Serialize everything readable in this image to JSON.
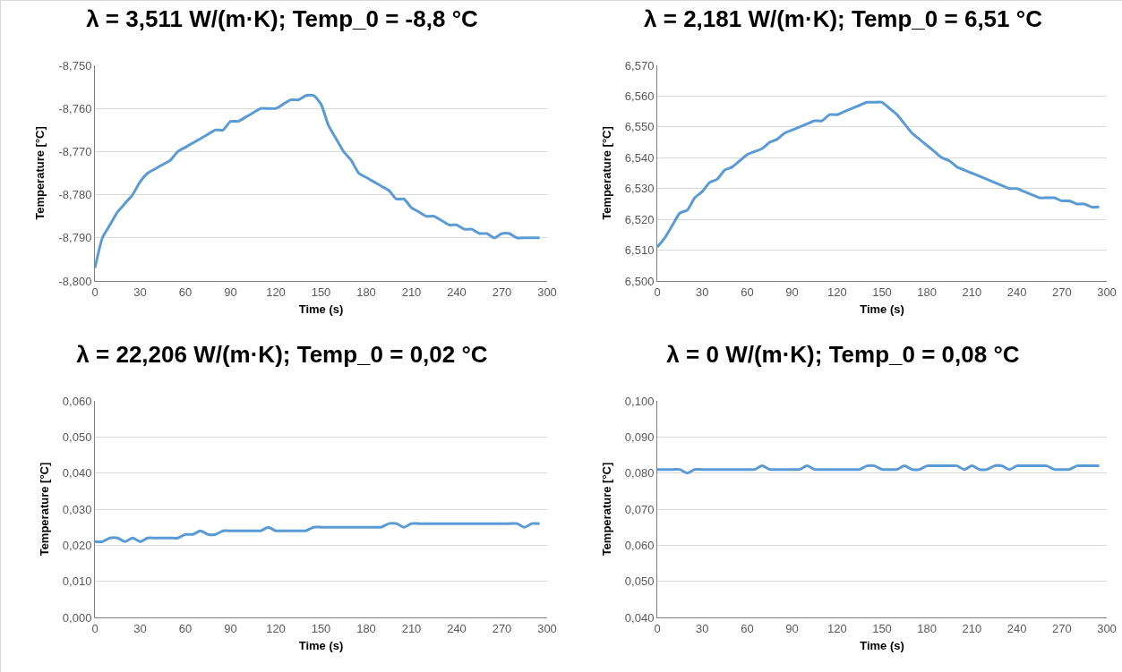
{
  "chart_data": [
    {
      "type": "line",
      "title": "λ = 3,511 W/(m·K); Temp_0 = -8,8 °C",
      "xlabel": "Time (s)",
      "ylabel": "Temperature [°C]",
      "color": "#5b9bd5",
      "grid": "y",
      "x": [
        0,
        5,
        10,
        15,
        20,
        25,
        30,
        35,
        40,
        45,
        50,
        55,
        60,
        65,
        70,
        75,
        80,
        85,
        90,
        95,
        100,
        105,
        110,
        115,
        120,
        125,
        130,
        135,
        140,
        145,
        150,
        155,
        160,
        165,
        170,
        175,
        180,
        185,
        190,
        195,
        200,
        205,
        210,
        215,
        220,
        225,
        230,
        235,
        240,
        245,
        250,
        255,
        260,
        265,
        270,
        275,
        280,
        285,
        290,
        295
      ],
      "values": [
        -8.797,
        -8.79,
        -8.787,
        -8.784,
        -8.782,
        -8.78,
        -8.777,
        -8.775,
        -8.774,
        -8.773,
        -8.772,
        -8.77,
        -8.769,
        -8.768,
        -8.767,
        -8.766,
        -8.765,
        -8.765,
        -8.763,
        -8.763,
        -8.762,
        -8.761,
        -8.76,
        -8.76,
        -8.76,
        -8.759,
        -8.758,
        -8.758,
        -8.757,
        -8.757,
        -8.759,
        -8.764,
        -8.767,
        -8.77,
        -8.772,
        -8.775,
        -8.776,
        -8.777,
        -8.778,
        -8.779,
        -8.781,
        -8.781,
        -8.783,
        -8.784,
        -8.785,
        -8.785,
        -8.786,
        -8.787,
        -8.787,
        -8.788,
        -8.788,
        -8.789,
        -8.789,
        -8.79,
        -8.789,
        -8.789,
        -8.79,
        -8.79,
        -8.79,
        -8.79
      ],
      "xlim": [
        0,
        300
      ],
      "xticks": [
        0,
        30,
        60,
        90,
        120,
        150,
        180,
        210,
        240,
        270,
        300
      ],
      "ylim": [
        -8.8,
        -8.75
      ],
      "yticks": [
        {
          "value": -8.8,
          "label": "-8,800"
        },
        {
          "value": -8.79,
          "label": "-8,790"
        },
        {
          "value": -8.78,
          "label": "-8,780"
        },
        {
          "value": -8.77,
          "label": "-8,770"
        },
        {
          "value": -8.76,
          "label": "-8,760"
        },
        {
          "value": -8.75,
          "label": "-8,750"
        }
      ]
    },
    {
      "type": "line",
      "title": "λ = 2,181 W/(m·K); Temp_0 = 6,51 °C",
      "xlabel": "Time (s)",
      "ylabel": "Temperature [°C]",
      "color": "#5b9bd5",
      "grid": "y",
      "x": [
        0,
        5,
        10,
        15,
        20,
        25,
        30,
        35,
        40,
        45,
        50,
        55,
        60,
        65,
        70,
        75,
        80,
        85,
        90,
        95,
        100,
        105,
        110,
        115,
        120,
        125,
        130,
        135,
        140,
        145,
        150,
        155,
        160,
        165,
        170,
        175,
        180,
        185,
        190,
        195,
        200,
        205,
        210,
        215,
        220,
        225,
        230,
        235,
        240,
        245,
        250,
        255,
        260,
        265,
        270,
        275,
        280,
        285,
        290,
        295
      ],
      "values": [
        6.511,
        6.514,
        6.518,
        6.522,
        6.523,
        6.527,
        6.529,
        6.532,
        6.533,
        6.536,
        6.537,
        6.539,
        6.541,
        6.542,
        6.543,
        6.545,
        6.546,
        6.548,
        6.549,
        6.55,
        6.551,
        6.552,
        6.552,
        6.554,
        6.554,
        6.555,
        6.556,
        6.557,
        6.558,
        6.558,
        6.558,
        6.556,
        6.554,
        6.551,
        6.548,
        6.546,
        6.544,
        6.542,
        6.54,
        6.539,
        6.537,
        6.536,
        6.535,
        6.534,
        6.533,
        6.532,
        6.531,
        6.53,
        6.53,
        6.529,
        6.528,
        6.527,
        6.527,
        6.527,
        6.526,
        6.526,
        6.525,
        6.525,
        6.524,
        6.524
      ],
      "xlim": [
        0,
        300
      ],
      "xticks": [
        0,
        30,
        60,
        90,
        120,
        150,
        180,
        210,
        240,
        270,
        300
      ],
      "ylim": [
        6.5,
        6.57
      ],
      "yticks": [
        {
          "value": 6.5,
          "label": "6,500"
        },
        {
          "value": 6.51,
          "label": "6,510"
        },
        {
          "value": 6.52,
          "label": "6,520"
        },
        {
          "value": 6.53,
          "label": "6,530"
        },
        {
          "value": 6.54,
          "label": "6,540"
        },
        {
          "value": 6.55,
          "label": "6,550"
        },
        {
          "value": 6.56,
          "label": "6,560"
        },
        {
          "value": 6.57,
          "label": "6,570"
        }
      ]
    },
    {
      "type": "line",
      "title": "λ = 22,206 W/(m·K); Temp_0 = 0,02 °C",
      "xlabel": "Time (s)",
      "ylabel": "Temperature [°C]",
      "color": "#5b9bd5",
      "grid": "y",
      "x": [
        0,
        5,
        10,
        15,
        20,
        25,
        30,
        35,
        40,
        45,
        50,
        55,
        60,
        65,
        70,
        75,
        80,
        85,
        90,
        95,
        100,
        105,
        110,
        115,
        120,
        125,
        130,
        135,
        140,
        145,
        150,
        155,
        160,
        165,
        170,
        175,
        180,
        185,
        190,
        195,
        200,
        205,
        210,
        215,
        220,
        225,
        230,
        235,
        240,
        245,
        250,
        255,
        260,
        265,
        270,
        275,
        280,
        285,
        290,
        295
      ],
      "values": [
        0.021,
        0.021,
        0.022,
        0.022,
        0.021,
        0.022,
        0.021,
        0.022,
        0.022,
        0.022,
        0.022,
        0.022,
        0.023,
        0.023,
        0.024,
        0.023,
        0.023,
        0.024,
        0.024,
        0.024,
        0.024,
        0.024,
        0.024,
        0.025,
        0.024,
        0.024,
        0.024,
        0.024,
        0.024,
        0.025,
        0.025,
        0.025,
        0.025,
        0.025,
        0.025,
        0.025,
        0.025,
        0.025,
        0.025,
        0.026,
        0.026,
        0.025,
        0.026,
        0.026,
        0.026,
        0.026,
        0.026,
        0.026,
        0.026,
        0.026,
        0.026,
        0.026,
        0.026,
        0.026,
        0.026,
        0.026,
        0.026,
        0.025,
        0.026,
        0.026
      ],
      "xlim": [
        0,
        300
      ],
      "xticks": [
        0,
        30,
        60,
        90,
        120,
        150,
        180,
        210,
        240,
        270,
        300
      ],
      "ylim": [
        0,
        0.06
      ],
      "yticks": [
        {
          "value": 0,
          "label": "0,000"
        },
        {
          "value": 0.01,
          "label": "0,010"
        },
        {
          "value": 0.02,
          "label": "0,020"
        },
        {
          "value": 0.03,
          "label": "0,030"
        },
        {
          "value": 0.04,
          "label": "0,040"
        },
        {
          "value": 0.05,
          "label": "0,050"
        },
        {
          "value": 0.06,
          "label": "0,060"
        }
      ]
    },
    {
      "type": "line",
      "title": "λ = 0 W/(m·K); Temp_0 = 0,08 °C",
      "xlabel": "Time (s)",
      "ylabel": "Temperature [°C]",
      "color": "#5b9bd5",
      "grid": "y",
      "x": [
        0,
        5,
        10,
        15,
        20,
        25,
        30,
        35,
        40,
        45,
        50,
        55,
        60,
        65,
        70,
        75,
        80,
        85,
        90,
        95,
        100,
        105,
        110,
        115,
        120,
        125,
        130,
        135,
        140,
        145,
        150,
        155,
        160,
        165,
        170,
        175,
        180,
        185,
        190,
        195,
        200,
        205,
        210,
        215,
        220,
        225,
        230,
        235,
        240,
        245,
        250,
        255,
        260,
        265,
        270,
        275,
        280,
        285,
        290,
        295
      ],
      "values": [
        0.081,
        0.081,
        0.081,
        0.081,
        0.08,
        0.081,
        0.081,
        0.081,
        0.081,
        0.081,
        0.081,
        0.081,
        0.081,
        0.081,
        0.082,
        0.081,
        0.081,
        0.081,
        0.081,
        0.081,
        0.082,
        0.081,
        0.081,
        0.081,
        0.081,
        0.081,
        0.081,
        0.081,
        0.082,
        0.082,
        0.081,
        0.081,
        0.081,
        0.082,
        0.081,
        0.081,
        0.082,
        0.082,
        0.082,
        0.082,
        0.082,
        0.081,
        0.082,
        0.081,
        0.081,
        0.082,
        0.082,
        0.081,
        0.082,
        0.082,
        0.082,
        0.082,
        0.082,
        0.081,
        0.081,
        0.081,
        0.082,
        0.082,
        0.082,
        0.082
      ],
      "xlim": [
        0,
        300
      ],
      "xticks": [
        0,
        30,
        60,
        90,
        120,
        150,
        180,
        210,
        240,
        270,
        300
      ],
      "ylim": [
        0.04,
        0.1
      ],
      "yticks": [
        {
          "value": 0.04,
          "label": "0,040"
        },
        {
          "value": 0.05,
          "label": "0,050"
        },
        {
          "value": 0.06,
          "label": "0,060"
        },
        {
          "value": 0.07,
          "label": "0,070"
        },
        {
          "value": 0.08,
          "label": "0,080"
        },
        {
          "value": 0.09,
          "label": "0,090"
        },
        {
          "value": 0.1,
          "label": "0,100"
        }
      ]
    }
  ]
}
